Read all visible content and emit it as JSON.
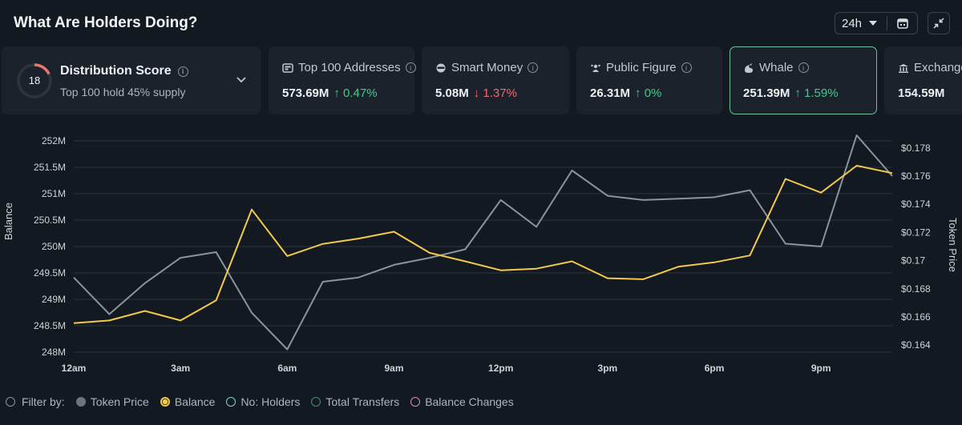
{
  "header": {
    "title": "What Are Holders Doing?",
    "range": "24h"
  },
  "distribution": {
    "score": "18",
    "title": "Distribution Score",
    "subtitle": "Top 100 hold 45% supply"
  },
  "cards": [
    {
      "icon": "addresses-icon",
      "title": "Top 100 Addresses",
      "value": "573.69M",
      "delta": "↑ 0.47%",
      "dir": "up"
    },
    {
      "icon": "smart-money-icon",
      "title": "Smart Money",
      "value": "5.08M",
      "delta": "↓ 1.37%",
      "dir": "down"
    },
    {
      "icon": "public-figure-icon",
      "title": "Public Figure",
      "value": "26.31M",
      "delta": "↑ 0%",
      "dir": "up"
    },
    {
      "icon": "whale-icon",
      "title": "Whale",
      "value": "251.39M",
      "delta": "↑ 1.59%",
      "dir": "up",
      "active": true
    },
    {
      "icon": "exchange-icon",
      "title": "Exchange",
      "value": "154.59M",
      "delta": "",
      "dir": "up"
    }
  ],
  "colors": {
    "balance": "#f2c94c",
    "price": "#8a939e",
    "accent": "#6fbf9b",
    "up": "#48c78e",
    "down": "#ef6b73"
  },
  "chart_data": {
    "type": "line",
    "ylabel": "Balance",
    "y2label": "Token Price",
    "x_ticks": [
      "12am",
      "3am",
      "6am",
      "9am",
      "12pm",
      "3pm",
      "6pm",
      "9pm"
    ],
    "x_tick_positions": [
      0,
      3,
      6,
      9,
      12,
      15,
      18,
      21
    ],
    "y_ticks": [
      "252M",
      "251.5M",
      "251M",
      "250.5M",
      "250M",
      "249.5M",
      "249M",
      "248.5M",
      "248M"
    ],
    "y_tick_values": [
      252,
      251.5,
      251,
      250.5,
      250,
      249.5,
      249,
      248.5,
      248
    ],
    "y2_ticks": [
      "$0.178",
      "$0.176",
      "$0.174",
      "$0.172",
      "$0.17",
      "$0.168",
      "$0.166",
      "$0.164"
    ],
    "y2_tick_values": [
      0.178,
      0.176,
      0.174,
      0.172,
      0.17,
      0.168,
      0.166,
      0.164
    ],
    "ylim": [
      248,
      252
    ],
    "y2lim": [
      0.1635,
      0.1785
    ],
    "xlim": [
      0,
      23
    ],
    "series": [
      {
        "name": "Balance",
        "axis": "left",
        "x": [
          0,
          1,
          2,
          3,
          4,
          5,
          6,
          7,
          8,
          9,
          10,
          11,
          12,
          13,
          14,
          15,
          16,
          17,
          18,
          19,
          20,
          21,
          22,
          23
        ],
        "values": [
          248.55,
          248.6,
          248.78,
          248.6,
          248.98,
          250.7,
          249.82,
          250.05,
          250.15,
          250.28,
          249.88,
          249.72,
          249.55,
          249.58,
          249.72,
          249.4,
          249.38,
          249.62,
          249.7,
          249.83,
          251.28,
          251.02,
          251.53,
          251.39
        ]
      },
      {
        "name": "Token Price",
        "axis": "right",
        "x": [
          0,
          1,
          2,
          3,
          4,
          5,
          6,
          7,
          8,
          9,
          10,
          11,
          12,
          13,
          14,
          15,
          16,
          17,
          18,
          19,
          20,
          21,
          22,
          23
        ],
        "values": [
          0.1688,
          0.1662,
          0.1684,
          0.1702,
          0.1706,
          0.1663,
          0.1637,
          0.1685,
          0.1688,
          0.1697,
          0.1702,
          0.1708,
          0.1743,
          0.1724,
          0.1764,
          0.1746,
          0.1743,
          0.1744,
          0.1745,
          0.175,
          0.1712,
          0.171,
          0.1789,
          0.176
        ]
      }
    ]
  },
  "filters": {
    "label": "Filter by:",
    "items": [
      {
        "label": "Token Price",
        "color": "#6b737d",
        "style": "filled"
      },
      {
        "label": "Balance",
        "color": "#f2c94c",
        "style": "ring-filled"
      },
      {
        "label": "No: Holders",
        "color": "#7fd3c7",
        "style": "ring"
      },
      {
        "label": "Total Transfers",
        "color": "#3e8f7a",
        "style": "ring"
      },
      {
        "label": "Balance Changes",
        "color": "#d98bb5",
        "style": "ring"
      }
    ]
  }
}
